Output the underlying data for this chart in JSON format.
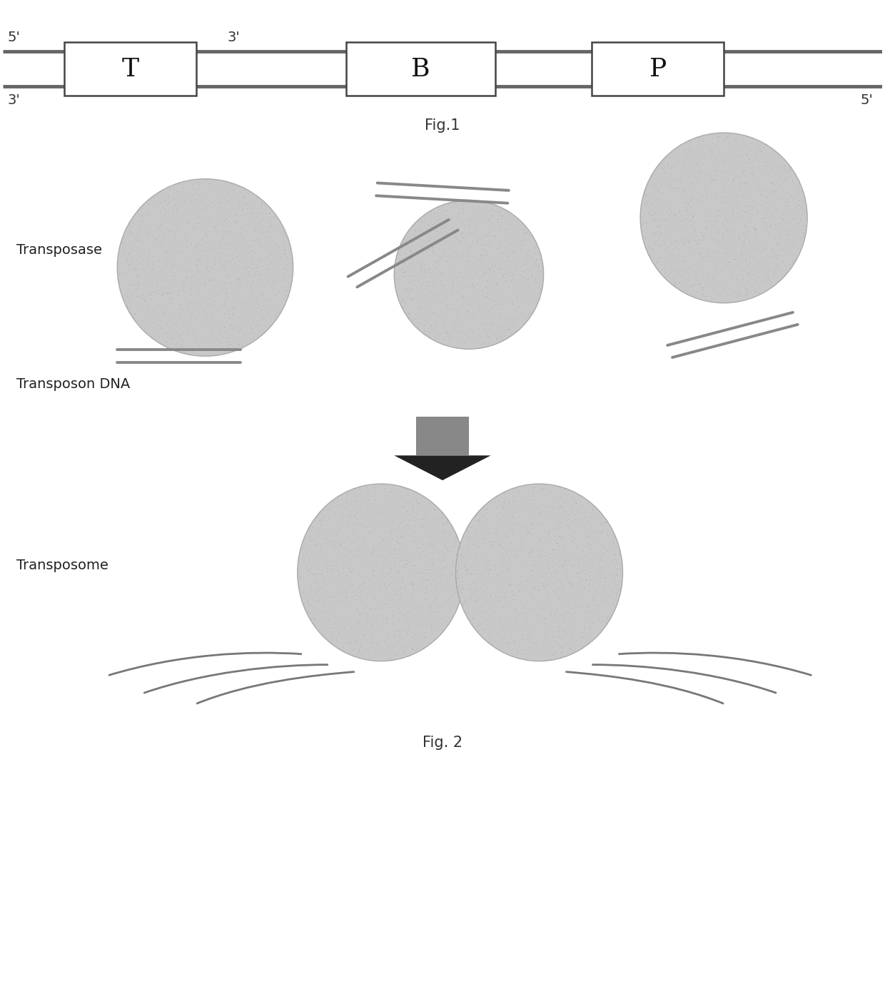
{
  "fig_width": 12.4,
  "fig_height": 14.03,
  "bg_color": "#ffffff",
  "fig1_caption": "Fig.1",
  "fig2_caption": "Fig. 2",
  "box_color": "#ffffff",
  "box_edge": "#444444",
  "line_color": "#666666",
  "ellipse_color": "#cccccc",
  "ellipse_edge": "#999999",
  "dna_line_color": "#777777",
  "label_transposase": "Transposase",
  "label_transposon_dna": "Transposon DNA",
  "label_transposome": "Transposome",
  "label_T": "T",
  "label_B": "B",
  "label_P": "P"
}
